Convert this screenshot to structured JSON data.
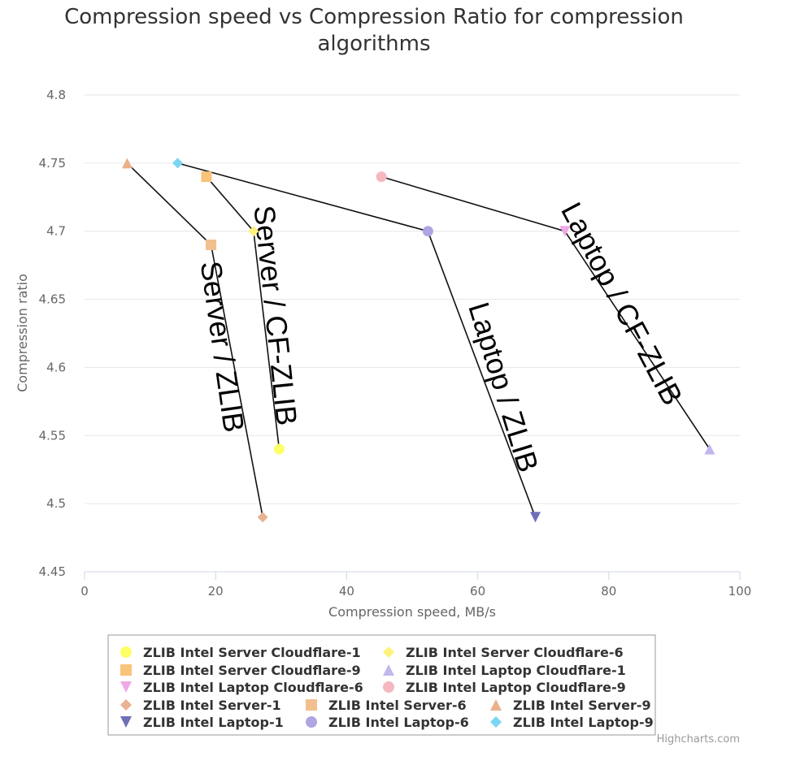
{
  "chart_data": {
    "type": "scatter",
    "title": [
      "Compression speed vs Compression Ratio for compression",
      "algorithms"
    ],
    "xlabel": "Compression speed, MB/s",
    "ylabel": "Compression ratio",
    "xlim": [
      0,
      100
    ],
    "ylim": [
      4.45,
      4.8
    ],
    "x_ticks": [
      0,
      20,
      40,
      60,
      80,
      100
    ],
    "y_ticks": [
      4.45,
      4.5,
      4.55,
      4.6,
      4.65,
      4.7,
      4.75,
      4.8
    ],
    "x_tick_labels": [
      "0",
      "20",
      "40",
      "60",
      "80",
      "100"
    ],
    "y_tick_labels": [
      "4.45",
      "4.5",
      "4.55",
      "4.6",
      "4.65",
      "4.7",
      "4.75",
      "4.8"
    ],
    "grid": "horizontal",
    "legend_position": "bottom",
    "credits": "Highcharts.com",
    "series": [
      {
        "name": "ZLIB Intel Server Cloudflare-1",
        "symbol": "circle",
        "color": "#ffff66",
        "points": [
          [
            29.7,
            4.54
          ]
        ]
      },
      {
        "name": "ZLIB Intel Server Cloudflare-6",
        "symbol": "diamond",
        "color": "#fff27a",
        "points": [
          [
            25.8,
            4.7
          ]
        ]
      },
      {
        "name": "ZLIB Intel Server Cloudflare-9",
        "symbol": "square",
        "color": "#f9c47a",
        "points": [
          [
            18.6,
            4.74
          ]
        ]
      },
      {
        "name": "ZLIB Intel Laptop Cloudflare-1",
        "symbol": "triangle",
        "color": "#c3b7ee",
        "points": [
          [
            95.4,
            4.54
          ]
        ]
      },
      {
        "name": "ZLIB Intel Laptop Cloudflare-6",
        "symbol": "triangle-down",
        "color": "#f0a8e8",
        "points": [
          [
            73.3,
            4.7
          ]
        ]
      },
      {
        "name": "ZLIB Intel Laptop Cloudflare-9",
        "symbol": "circle",
        "color": "#f5b8c0",
        "points": [
          [
            45.3,
            4.74
          ]
        ]
      },
      {
        "name": "ZLIB Intel Server-1",
        "symbol": "diamond",
        "color": "#e9b294",
        "points": [
          [
            27.2,
            4.49
          ]
        ]
      },
      {
        "name": "ZLIB Intel Server-6",
        "symbol": "square",
        "color": "#f2c08e",
        "points": [
          [
            19.3,
            4.69
          ]
        ]
      },
      {
        "name": "ZLIB Intel Server-9",
        "symbol": "triangle",
        "color": "#ebb08a",
        "points": [
          [
            6.5,
            4.75
          ]
        ]
      },
      {
        "name": "ZLIB Intel Laptop-1",
        "symbol": "triangle-down",
        "color": "#6f6fb8",
        "points": [
          [
            68.8,
            4.49
          ]
        ]
      },
      {
        "name": "ZLIB Intel Laptop-6",
        "symbol": "circle",
        "color": "#b0a4e3",
        "points": [
          [
            52.4,
            4.7
          ]
        ]
      },
      {
        "name": "ZLIB Intel Laptop-9",
        "symbol": "diamond",
        "color": "#7ad6f4",
        "points": [
          [
            14.2,
            4.75
          ]
        ]
      }
    ],
    "annotation_lines": [
      [
        [
          6.5,
          4.75
        ],
        [
          19.3,
          4.69
        ],
        [
          27.2,
          4.49
        ]
      ],
      [
        [
          18.6,
          4.74
        ],
        [
          25.8,
          4.7
        ],
        [
          29.7,
          4.54
        ]
      ],
      [
        [
          14.2,
          4.75
        ],
        [
          52.4,
          4.7
        ],
        [
          68.8,
          4.49
        ]
      ],
      [
        [
          45.3,
          4.74
        ],
        [
          73.3,
          4.7
        ],
        [
          95.4,
          4.54
        ]
      ]
    ],
    "annotations": [
      {
        "text": "Server / ZLIB",
        "x": 20.7,
        "y": 4.615,
        "rotation": 82
      },
      {
        "text": "Server / CF-ZLIB",
        "x": 28.8,
        "y": 4.638,
        "rotation": 84
      },
      {
        "text": "Laptop / ZLIB",
        "x": 63.6,
        "y": 4.585,
        "rotation": 73
      },
      {
        "text": "Laptop / CF-ZLIB",
        "x": 81.7,
        "y": 4.646,
        "rotation": 62
      }
    ]
  }
}
